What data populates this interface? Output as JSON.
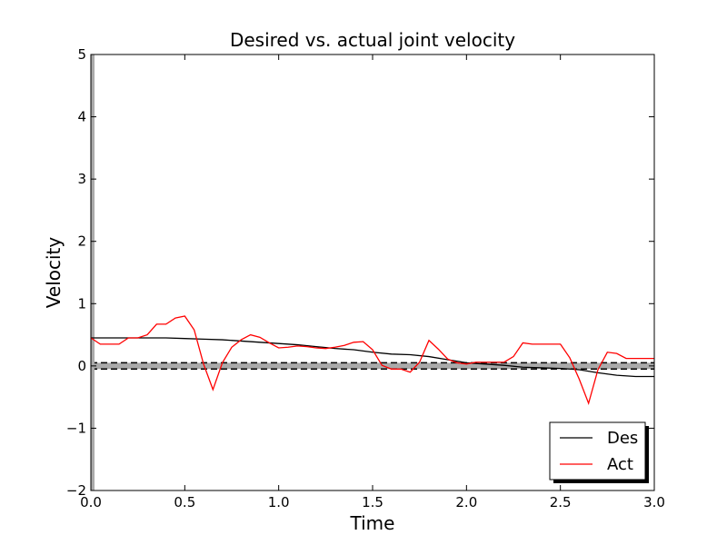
{
  "chart_data": {
    "type": "line",
    "title": "Desired vs. actual joint velocity",
    "xlabel": "Time",
    "ylabel": "Velocity",
    "xlim": [
      0.0,
      3.0
    ],
    "ylim": [
      -2,
      5
    ],
    "x_ticks": [
      "0.0",
      "0.5",
      "1.0",
      "1.5",
      "2.0",
      "2.5",
      "3.0"
    ],
    "y_ticks": [
      "−2",
      "−1",
      "0",
      "1",
      "2",
      "3",
      "4",
      "5"
    ],
    "x_tick_values": [
      0.0,
      0.5,
      1.0,
      1.5,
      2.0,
      2.5,
      3.0
    ],
    "y_tick_values": [
      -2,
      -1,
      0,
      1,
      2,
      3,
      4,
      5
    ],
    "grid": false,
    "legend_position": "lower-right",
    "band": {
      "y_min": -0.05,
      "y_max": 0.05,
      "color": "#aaaaaa"
    },
    "series": [
      {
        "name": "Des",
        "color": "#000000",
        "x": [
          0.0,
          0.1,
          0.2,
          0.3,
          0.4,
          0.5,
          0.6,
          0.7,
          0.8,
          0.9,
          1.0,
          1.1,
          1.2,
          1.3,
          1.4,
          1.5,
          1.6,
          1.7,
          1.8,
          1.9,
          2.0,
          2.1,
          2.2,
          2.3,
          2.4,
          2.5,
          2.6,
          2.7,
          2.8,
          2.9,
          3.0
        ],
        "y": [
          0.45,
          0.45,
          0.45,
          0.45,
          0.45,
          0.44,
          0.43,
          0.42,
          0.4,
          0.38,
          0.36,
          0.34,
          0.31,
          0.28,
          0.26,
          0.22,
          0.19,
          0.18,
          0.15,
          0.1,
          0.05,
          0.03,
          0.01,
          -0.02,
          -0.03,
          -0.04,
          -0.06,
          -0.11,
          -0.15,
          -0.17,
          -0.17
        ]
      },
      {
        "name": "Act",
        "color": "#ff0000",
        "x": [
          0.0,
          0.05,
          0.15,
          0.2,
          0.25,
          0.3,
          0.35,
          0.4,
          0.45,
          0.5,
          0.55,
          0.6,
          0.65,
          0.7,
          0.75,
          0.8,
          0.85,
          0.9,
          0.95,
          1.0,
          1.05,
          1.1,
          1.15,
          1.2,
          1.25,
          1.3,
          1.35,
          1.4,
          1.45,
          1.5,
          1.55,
          1.6,
          1.65,
          1.7,
          1.75,
          1.8,
          1.85,
          1.9,
          1.95,
          2.0,
          2.05,
          2.1,
          2.15,
          2.2,
          2.25,
          2.3,
          2.35,
          2.4,
          2.45,
          2.5,
          2.55,
          2.6,
          2.65,
          2.7,
          2.75,
          2.8,
          2.85,
          2.9,
          2.95,
          3.0
        ],
        "y": [
          0.45,
          0.35,
          0.35,
          0.45,
          0.45,
          0.5,
          0.67,
          0.67,
          0.77,
          0.8,
          0.58,
          0.03,
          -0.38,
          0.05,
          0.3,
          0.42,
          0.5,
          0.46,
          0.37,
          0.29,
          0.3,
          0.32,
          0.31,
          0.29,
          0.28,
          0.3,
          0.33,
          0.38,
          0.39,
          0.26,
          0.01,
          -0.05,
          -0.05,
          -0.1,
          0.06,
          0.41,
          0.27,
          0.11,
          0.05,
          0.03,
          0.06,
          0.06,
          0.06,
          0.06,
          0.15,
          0.37,
          0.35,
          0.35,
          0.35,
          0.35,
          0.13,
          -0.21,
          -0.6,
          -0.06,
          0.22,
          0.2,
          0.12,
          0.12,
          0.12,
          0.12
        ]
      }
    ]
  }
}
